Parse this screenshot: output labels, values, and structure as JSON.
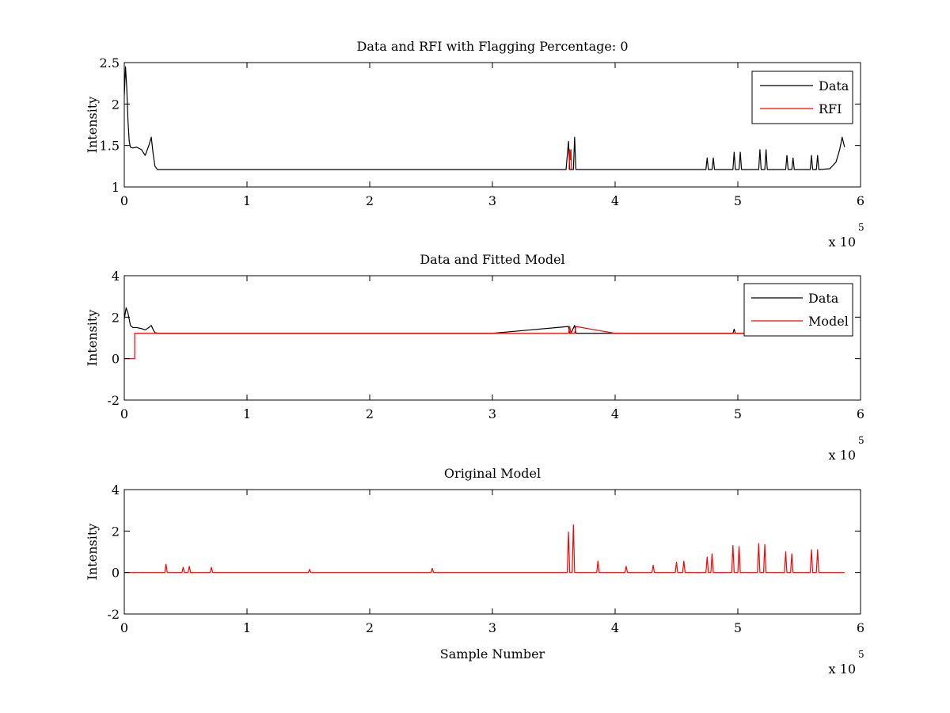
{
  "chart_data": [
    {
      "type": "line",
      "title": "Data and RFI with Flagging Percentage: 0",
      "xlabel": "",
      "ylabel": "Intensity",
      "xlim": [
        0,
        600000
      ],
      "ylim": [
        1,
        2.5
      ],
      "xticks": [
        0,
        100000,
        200000,
        300000,
        400000,
        500000,
        600000
      ],
      "xtick_labels": [
        "0",
        "1",
        "2",
        "3",
        "4",
        "5",
        "6"
      ],
      "yticks": [
        1,
        1.5,
        2,
        2.5
      ],
      "ytick_labels": [
        "1",
        "1.5",
        "2",
        "2.5"
      ],
      "x_multiplier_base": "x 10",
      "x_multiplier_exp": "5",
      "grid": false,
      "legend": "top-right",
      "series": [
        {
          "name": "Data",
          "color": "#000000",
          "x": [
            0,
            1000,
            2000,
            3000,
            4000,
            5000,
            7000,
            10000,
            14000,
            17000,
            20000,
            22000,
            23500,
            25000,
            27000,
            30000,
            50000,
            100000,
            200000,
            300000,
            360000,
            362000,
            363000,
            364000,
            366000,
            367000,
            368000,
            400000,
            474000,
            475000,
            476000,
            479000,
            480000,
            481000,
            496000,
            497000,
            498000,
            501000,
            502000,
            503000,
            517000,
            518000,
            519000,
            522000,
            523000,
            524000,
            539000,
            540000,
            541000,
            544000,
            545000,
            546000,
            559000,
            560000,
            561000,
            564000,
            565000,
            566000,
            575000,
            580000,
            583000,
            585000,
            587000
          ],
          "y": [
            2.1,
            2.45,
            2.2,
            1.8,
            1.55,
            1.48,
            1.47,
            1.48,
            1.45,
            1.38,
            1.5,
            1.6,
            1.4,
            1.25,
            1.21,
            1.21,
            1.21,
            1.21,
            1.21,
            1.21,
            1.21,
            1.55,
            1.21,
            1.21,
            1.21,
            1.6,
            1.21,
            1.21,
            1.21,
            1.35,
            1.21,
            1.21,
            1.35,
            1.21,
            1.21,
            1.42,
            1.21,
            1.21,
            1.42,
            1.21,
            1.21,
            1.45,
            1.21,
            1.21,
            1.45,
            1.21,
            1.21,
            1.38,
            1.21,
            1.21,
            1.35,
            1.21,
            1.21,
            1.38,
            1.21,
            1.21,
            1.38,
            1.21,
            1.22,
            1.3,
            1.45,
            1.6,
            1.48
          ]
        },
        {
          "name": "RFI",
          "color": "#ff0000",
          "x": [
            362500,
            363000,
            363500,
            364000,
            364500
          ],
          "y": [
            1.21,
            1.45,
            1.33,
            1.45,
            1.21
          ]
        }
      ]
    },
    {
      "type": "line",
      "title": "Data and Fitted Model",
      "xlabel": "",
      "ylabel": "Intensity",
      "xlim": [
        0,
        600000
      ],
      "ylim": [
        -2,
        4
      ],
      "xticks": [
        0,
        100000,
        200000,
        300000,
        400000,
        500000,
        600000
      ],
      "xtick_labels": [
        "0",
        "1",
        "2",
        "3",
        "4",
        "5",
        "6"
      ],
      "yticks": [
        -2,
        0,
        2,
        4
      ],
      "ytick_labels": [
        "-2",
        "0",
        "2",
        "4"
      ],
      "x_multiplier_base": "x 10",
      "x_multiplier_exp": "5",
      "grid": false,
      "legend": "top-right",
      "series": [
        {
          "name": "Data",
          "color": "#000000",
          "x": [
            0,
            1500,
            3000,
            5000,
            7000,
            10000,
            14000,
            17000,
            20000,
            22000,
            23500,
            25000,
            28000,
            100000,
            300000,
            362000,
            363000,
            364000,
            367000,
            368000,
            400000,
            496000,
            497000,
            498000,
            540000,
            580000,
            583000,
            585000,
            587000
          ],
          "y": [
            1.9,
            2.45,
            2.2,
            1.6,
            1.5,
            1.5,
            1.45,
            1.38,
            1.5,
            1.6,
            1.4,
            1.25,
            1.22,
            1.22,
            1.22,
            1.55,
            1.22,
            1.22,
            1.6,
            1.22,
            1.22,
            1.22,
            1.42,
            1.22,
            1.22,
            1.22,
            1.3,
            1.45,
            1.48
          ]
        },
        {
          "name": "Model",
          "color": "#ff0000",
          "x": [
            0,
            8500,
            8500,
            10000,
            100000,
            300000,
            362000,
            363000,
            364000,
            367000,
            368000,
            400000,
            587000
          ],
          "y": [
            0,
            0,
            1.22,
            1.22,
            1.22,
            1.22,
            1.22,
            1.55,
            1.22,
            1.22,
            1.55,
            1.22,
            1.22
          ]
        }
      ]
    },
    {
      "type": "line",
      "title": "Original Model",
      "xlabel": "Sample Number",
      "ylabel": "Intensity",
      "xlim": [
        0,
        600000
      ],
      "ylim": [
        -2,
        4
      ],
      "xticks": [
        0,
        100000,
        200000,
        300000,
        400000,
        500000,
        600000
      ],
      "xtick_labels": [
        "0",
        "1",
        "2",
        "3",
        "4",
        "5",
        "6"
      ],
      "yticks": [
        -2,
        0,
        2,
        4
      ],
      "ytick_labels": [
        "-2",
        "0",
        "2",
        "4"
      ],
      "x_multiplier_base": "x 10",
      "x_multiplier_exp": "5",
      "grid": false,
      "legend": "none",
      "series": [
        {
          "color": "#ff0000",
          "x": [
            0,
            33000,
            34000,
            35000,
            47000,
            48000,
            49000,
            52000,
            53000,
            54000,
            70000,
            71000,
            72000,
            150000,
            151000,
            152000,
            250000,
            251000,
            252000,
            361000,
            362000,
            363000,
            365000,
            366000,
            367000,
            385000,
            386000,
            387000,
            408000,
            409000,
            410000,
            430000,
            431000,
            432000,
            449000,
            450000,
            451000,
            455000,
            456000,
            457000,
            474000,
            475000,
            476000,
            478000,
            479000,
            480000,
            495000,
            496000,
            497000,
            500000,
            501000,
            502000,
            516000,
            517000,
            518000,
            521000,
            522000,
            523000,
            538000,
            539000,
            540000,
            543000,
            544000,
            545000,
            559000,
            560000,
            561000,
            564000,
            565000,
            566000,
            587000
          ],
          "y": [
            0,
            0,
            0.4,
            0,
            0,
            0.25,
            0,
            0,
            0.3,
            0,
            0,
            0.25,
            0,
            0,
            0.15,
            0,
            0,
            0.2,
            0,
            0,
            1.95,
            0,
            0,
            2.3,
            0,
            0,
            0.55,
            0,
            0,
            0.3,
            0,
            0,
            0.35,
            0,
            0,
            0.5,
            0,
            0,
            0.55,
            0,
            0,
            0.75,
            0,
            0,
            0.9,
            0,
            0,
            1.3,
            0,
            0,
            1.25,
            0,
            0,
            1.4,
            0,
            0,
            1.35,
            0,
            0,
            1.0,
            0,
            0,
            0.9,
            0,
            0,
            1.1,
            0,
            0,
            1.1,
            0,
            0
          ]
        }
      ]
    }
  ]
}
